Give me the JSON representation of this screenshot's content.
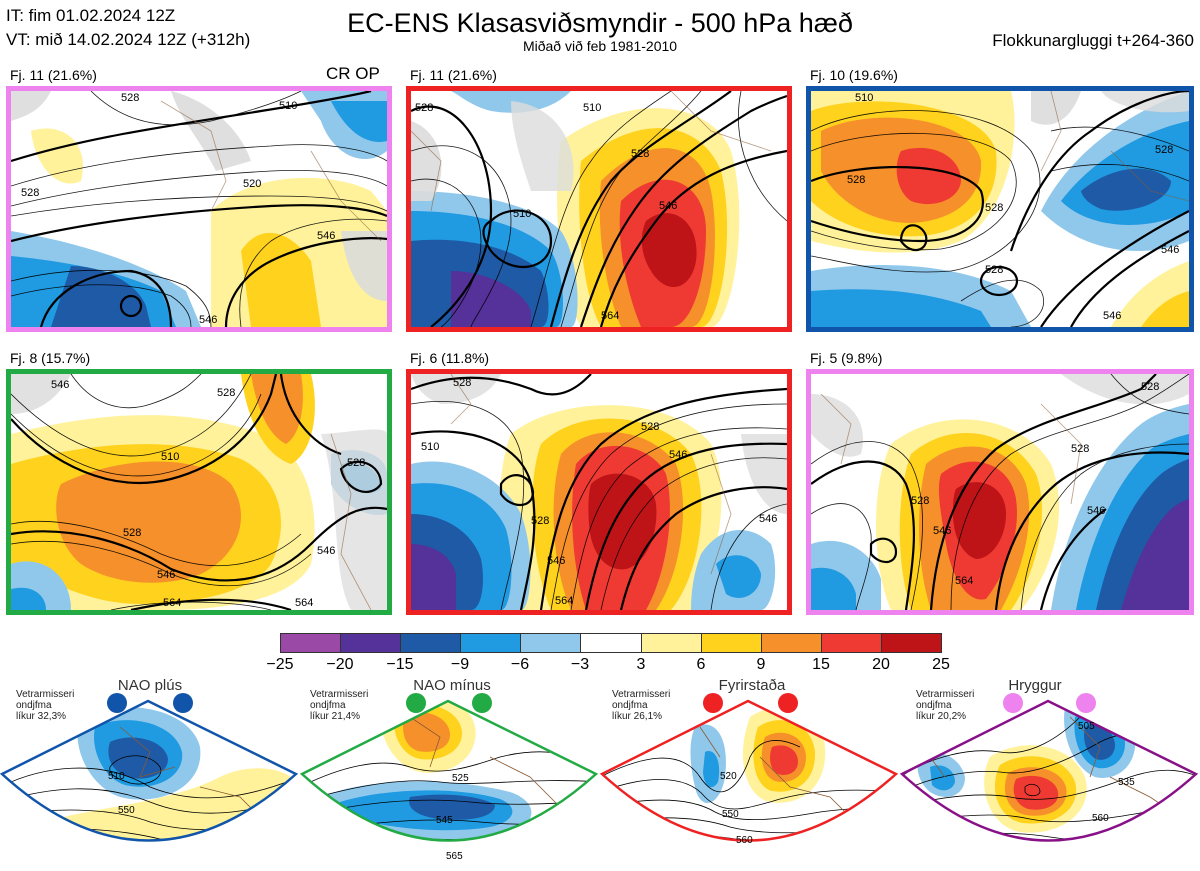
{
  "header": {
    "it_line": "IT: fim 01.02.2024 12Z",
    "vt_line": "VT: mið 14.02.2024 12Z  (+312h)",
    "title": "EC-ENS Klasasviðsmyndir - 500 hPa hæð",
    "subtitle": "Miðað við feb 1981-2010",
    "window_label": "Flokkunargluggi t+264-360"
  },
  "colors": {
    "neg25": "#9a4aa6",
    "neg20": "#55319a",
    "neg15": "#1e5aa6",
    "neg9": "#209ae0",
    "neg6": "#90c8ec",
    "neu": "#ffffff",
    "pos3": "#fff29a",
    "pos6": "#ffd21e",
    "pos9": "#f6902a",
    "pos15": "#ee3a32",
    "pos20": "#be1418",
    "land": "#dcdcdc",
    "coast": "#8a5a34"
  },
  "panels": [
    {
      "label": "Fj. 11 (21.6%)",
      "border": "#ee82ee",
      "extra": "CR OP",
      "contours": [
        "510",
        "528",
        "520",
        "546",
        "528",
        "546"
      ]
    },
    {
      "label": "Fj. 11 (21.6%)",
      "border": "#ee2222",
      "contours": [
        "510",
        "528",
        "510",
        "528",
        "546",
        "564"
      ]
    },
    {
      "label": "Fj. 10 (19.6%)",
      "border": "#1155aa",
      "contours": [
        "510",
        "528",
        "528",
        "528",
        "546",
        "528",
        "546"
      ]
    },
    {
      "label": "Fj. 8 (15.7%)",
      "border": "#22aa44",
      "contours": [
        "546",
        "510",
        "528",
        "528",
        "546",
        "564",
        "564",
        "528",
        "546"
      ]
    },
    {
      "label": "Fj. 6 (11.8%)",
      "border": "#ee2222",
      "contours": [
        "528",
        "510",
        "528",
        "546",
        "528",
        "546",
        "564",
        "546"
      ]
    },
    {
      "label": "Fj. 5 (9.8%)",
      "border": "#ee82ee",
      "contours": [
        "528",
        "528",
        "528",
        "546",
        "564",
        "546"
      ]
    }
  ],
  "colorbar": {
    "ticks": [
      "−25",
      "−20",
      "−15",
      "−9",
      "−6",
      "−3",
      "3",
      "6",
      "9",
      "15",
      "20",
      "25"
    ]
  },
  "regimes": [
    {
      "name": "NAO plús",
      "stat_lines": [
        "Vetrarmisseri",
        "ondjfma",
        "líkur 32,3%"
      ],
      "color": "#1155aa",
      "dot": "#1155aa",
      "contours": [
        "510",
        "550"
      ]
    },
    {
      "name": "NAO mínus",
      "stat_lines": [
        "Vetrarmisseri",
        "ondjfma",
        "líkur 21,4%"
      ],
      "color": "#22aa44",
      "dot": "#22aa44",
      "contours": [
        "525",
        "545",
        "565"
      ]
    },
    {
      "name": "Fyrirstaða",
      "stat_lines": [
        "Vetrarmisseri",
        "ondjfma",
        "líkur 26,1%"
      ],
      "color": "#ee2222",
      "dot": "#ee2222",
      "contours": [
        "520",
        "550",
        "560"
      ]
    },
    {
      "name": "Hryggur",
      "stat_lines": [
        "Vetrarmisseri",
        "ondjfma",
        "líkur 20,2%"
      ],
      "color": "#881188",
      "dot": "#ee82ee",
      "contours": [
        "505",
        "535",
        "560"
      ]
    }
  ]
}
